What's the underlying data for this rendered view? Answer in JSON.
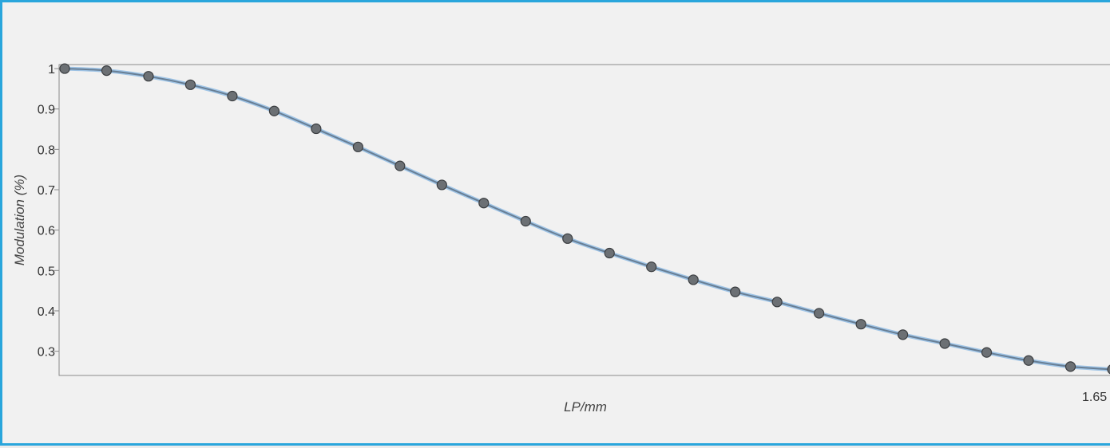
{
  "colors": {
    "frame_border": "#2aa6dc",
    "line_light": "#9fc4e6",
    "line_dark": "#3a4650",
    "marker_fill": "#6c7074",
    "marker_stroke": "#3a3d40"
  },
  "chart_data": {
    "type": "line",
    "title": "",
    "xlabel": "LP/mm",
    "ylabel": "Modulation (%)",
    "x_tick_labels": [
      "1.65"
    ],
    "y_tick_labels": [
      "1",
      "0.9",
      "0.8",
      "0.7",
      "0.6",
      "0.5",
      "0.4",
      "0.3"
    ],
    "y_ticks": [
      1,
      0.9,
      0.8,
      0.7,
      0.6,
      0.5,
      0.4,
      0.3
    ],
    "xlim": [
      0,
      1.65
    ],
    "ylim": [
      0.24,
      1.01
    ],
    "grid": false,
    "legend": "none",
    "series": [
      {
        "x": [
          0,
          0.066,
          0.132,
          0.198,
          0.264,
          0.33,
          0.396,
          0.462,
          0.528,
          0.594,
          0.66,
          0.726,
          0.792,
          0.858,
          0.924,
          0.99,
          1.056,
          1.122,
          1.188,
          1.254,
          1.32,
          1.386,
          1.452,
          1.518,
          1.584,
          1.65
        ],
        "values": [
          1.0,
          0.995,
          0.981,
          0.96,
          0.932,
          0.895,
          0.851,
          0.806,
          0.759,
          0.712,
          0.667,
          0.622,
          0.579,
          0.543,
          0.509,
          0.477,
          0.447,
          0.422,
          0.394,
          0.367,
          0.341,
          0.319,
          0.297,
          0.277,
          0.262,
          0.255
        ]
      }
    ]
  }
}
